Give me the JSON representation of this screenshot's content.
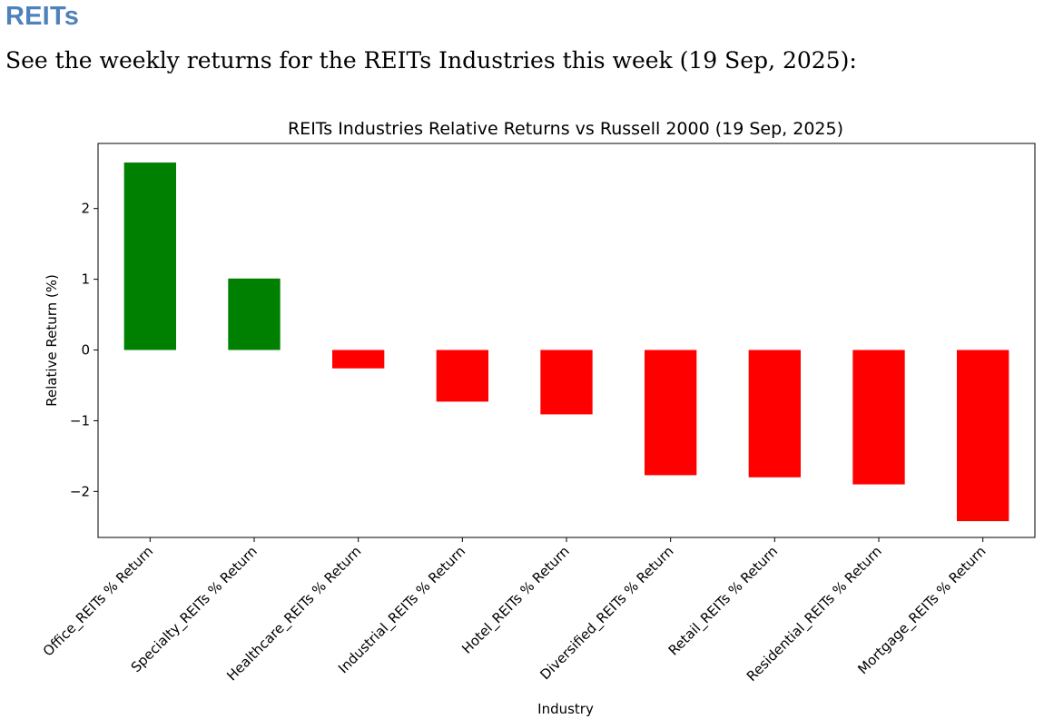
{
  "section": {
    "heading": "REITs",
    "intro": "See the weekly returns for the REITs Industries this week (19 Sep, 2025):"
  },
  "chart_data": {
    "type": "bar",
    "title": "REITs Industries Relative Returns vs Russell 2000 (19 Sep, 2025)",
    "xlabel": "Industry",
    "ylabel": "Relative Return (%)",
    "categories": [
      "Office_REITs % Return",
      "Specialty_REITs % Return",
      "Healthcare_REITs % Return",
      "Industrial_REITs % Return",
      "Hotel_REITs % Return",
      "Diversified_REITs % Return",
      "Retail_REITs % Return",
      "Residential_REITs % Return",
      "Mortgage_REITs % Return"
    ],
    "values": [
      2.65,
      1.01,
      -0.26,
      -0.73,
      -0.91,
      -1.77,
      -1.8,
      -1.9,
      -2.42
    ],
    "ylim": [
      -2.65,
      2.92
    ],
    "yticks": [
      2,
      1,
      0,
      -1,
      -2
    ],
    "ytick_labels": [
      "2",
      "1",
      "0",
      "−1",
      "−2"
    ],
    "colors": {
      "positive": "#008000",
      "negative": "#ff0000"
    },
    "grid": false,
    "legend": "none"
  }
}
